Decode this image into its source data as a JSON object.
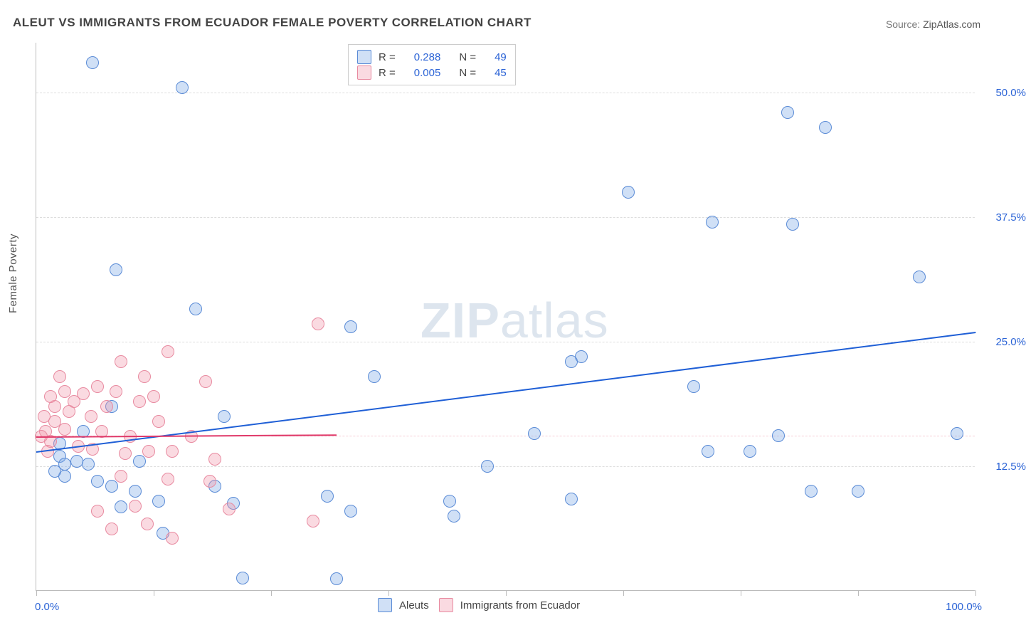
{
  "title": "ALEUT VS IMMIGRANTS FROM ECUADOR FEMALE POVERTY CORRELATION CHART",
  "source_label": "Source: ",
  "source_value": "ZipAtlas.com",
  "ylabel": "Female Poverty",
  "watermark_zip": "ZIP",
  "watermark_atlas": "atlas",
  "chart": {
    "type": "scatter",
    "xlim": [
      0,
      100
    ],
    "ylim": [
      0,
      55
    ],
    "x_axis_label_min": "0.0%",
    "x_axis_label_max": "100.0%",
    "y_tick_labels": [
      "12.5%",
      "25.0%",
      "37.5%",
      "50.0%"
    ],
    "y_tick_values": [
      12.5,
      25.0,
      37.5,
      50.0
    ],
    "x_tick_values": [
      0,
      12.5,
      25,
      37.5,
      50,
      62.5,
      75,
      87.5,
      100
    ],
    "grid_color": "#dddddd",
    "pink_grid_color": "#f7cdd5",
    "background_color": "#ffffff",
    "marker_radius": 9,
    "marker_border_width": 1.5,
    "pink_dash_y": 15.6,
    "series": [
      {
        "name": "Aleuts",
        "fill_color": "rgba(120,165,230,0.35)",
        "border_color": "#5a8bd6",
        "trend_color": "#1f5fd6",
        "trend_width": 2.5,
        "R": "0.288",
        "N": "49",
        "trend": {
          "x1": 0,
          "y1": 14.0,
          "x2": 100,
          "y2": 26.0
        },
        "points": [
          [
            6.0,
            53.0
          ],
          [
            15.5,
            50.5
          ],
          [
            80.0,
            48.0
          ],
          [
            84.0,
            46.5
          ],
          [
            63.0,
            40.0
          ],
          [
            72.0,
            37.0
          ],
          [
            80.5,
            36.8
          ],
          [
            94.0,
            31.5
          ],
          [
            8.5,
            32.2
          ],
          [
            17.0,
            28.3
          ],
          [
            58.0,
            23.5
          ],
          [
            33.5,
            26.5
          ],
          [
            98.0,
            15.8
          ],
          [
            36.0,
            21.5
          ],
          [
            70.0,
            20.5
          ],
          [
            53.0,
            15.8
          ],
          [
            79.0,
            15.6
          ],
          [
            82.5,
            10.0
          ],
          [
            87.5,
            10.0
          ],
          [
            76.0,
            14.0
          ],
          [
            57.0,
            9.2
          ],
          [
            48.0,
            12.5
          ],
          [
            44.0,
            9.0
          ],
          [
            33.5,
            8.0
          ],
          [
            32.0,
            1.2
          ],
          [
            22.0,
            1.3
          ],
          [
            31.0,
            9.5
          ],
          [
            21.0,
            8.8
          ],
          [
            19.0,
            10.5
          ],
          [
            13.0,
            9.0
          ],
          [
            13.5,
            5.8
          ],
          [
            10.5,
            10.0
          ],
          [
            8.0,
            10.5
          ],
          [
            8.0,
            18.5
          ],
          [
            5.5,
            12.7
          ],
          [
            5.0,
            16.0
          ],
          [
            4.3,
            13.0
          ],
          [
            3.0,
            11.5
          ],
          [
            2.5,
            13.5
          ],
          [
            2.0,
            12.0
          ],
          [
            2.5,
            14.8
          ],
          [
            3.0,
            12.7
          ],
          [
            11.0,
            13.0
          ],
          [
            6.5,
            11.0
          ],
          [
            20.0,
            17.5
          ],
          [
            44.5,
            7.5
          ],
          [
            71.5,
            14.0
          ],
          [
            57.0,
            23.0
          ],
          [
            9.0,
            8.4
          ]
        ]
      },
      {
        "name": "Immigrants from Ecuador",
        "fill_color": "rgba(240,150,170,0.35)",
        "border_color": "#e88aa0",
        "trend_color": "#e03a6a",
        "trend_width": 2,
        "R": "0.005",
        "N": "45",
        "trend": {
          "x1": 0,
          "y1": 15.5,
          "x2": 32,
          "y2": 15.7
        },
        "points": [
          [
            30.0,
            26.8
          ],
          [
            14.0,
            24.0
          ],
          [
            18.0,
            21.0
          ],
          [
            16.5,
            15.5
          ],
          [
            11.0,
            19.0
          ],
          [
            11.5,
            21.5
          ],
          [
            9.0,
            23.0
          ],
          [
            8.5,
            20.0
          ],
          [
            6.5,
            20.5
          ],
          [
            5.0,
            19.8
          ],
          [
            4.0,
            19.0
          ],
          [
            3.0,
            20.0
          ],
          [
            2.0,
            18.5
          ],
          [
            2.0,
            17.0
          ],
          [
            1.5,
            19.5
          ],
          [
            1.0,
            16.0
          ],
          [
            1.5,
            15.0
          ],
          [
            0.8,
            17.5
          ],
          [
            1.2,
            14.0
          ],
          [
            0.5,
            15.5
          ],
          [
            2.5,
            21.5
          ],
          [
            3.5,
            18.0
          ],
          [
            5.8,
            17.5
          ],
          [
            7.0,
            16.0
          ],
          [
            6.0,
            14.2
          ],
          [
            6.5,
            8.0
          ],
          [
            9.5,
            13.8
          ],
          [
            10.0,
            15.5
          ],
          [
            10.5,
            8.5
          ],
          [
            12.0,
            14.0
          ],
          [
            13.0,
            17.0
          ],
          [
            14.5,
            14.0
          ],
          [
            9.0,
            11.5
          ],
          [
            8.0,
            6.2
          ],
          [
            14.5,
            5.3
          ],
          [
            18.5,
            11.0
          ],
          [
            19.0,
            13.2
          ],
          [
            20.5,
            8.2
          ],
          [
            29.5,
            7.0
          ],
          [
            11.8,
            6.7
          ],
          [
            14.0,
            11.2
          ],
          [
            4.5,
            14.5
          ],
          [
            12.5,
            19.5
          ],
          [
            7.5,
            18.5
          ],
          [
            3.0,
            16.2
          ]
        ]
      }
    ]
  },
  "legend_bottom": {
    "items": [
      "Aleuts",
      "Immigrants from Ecuador"
    ]
  }
}
